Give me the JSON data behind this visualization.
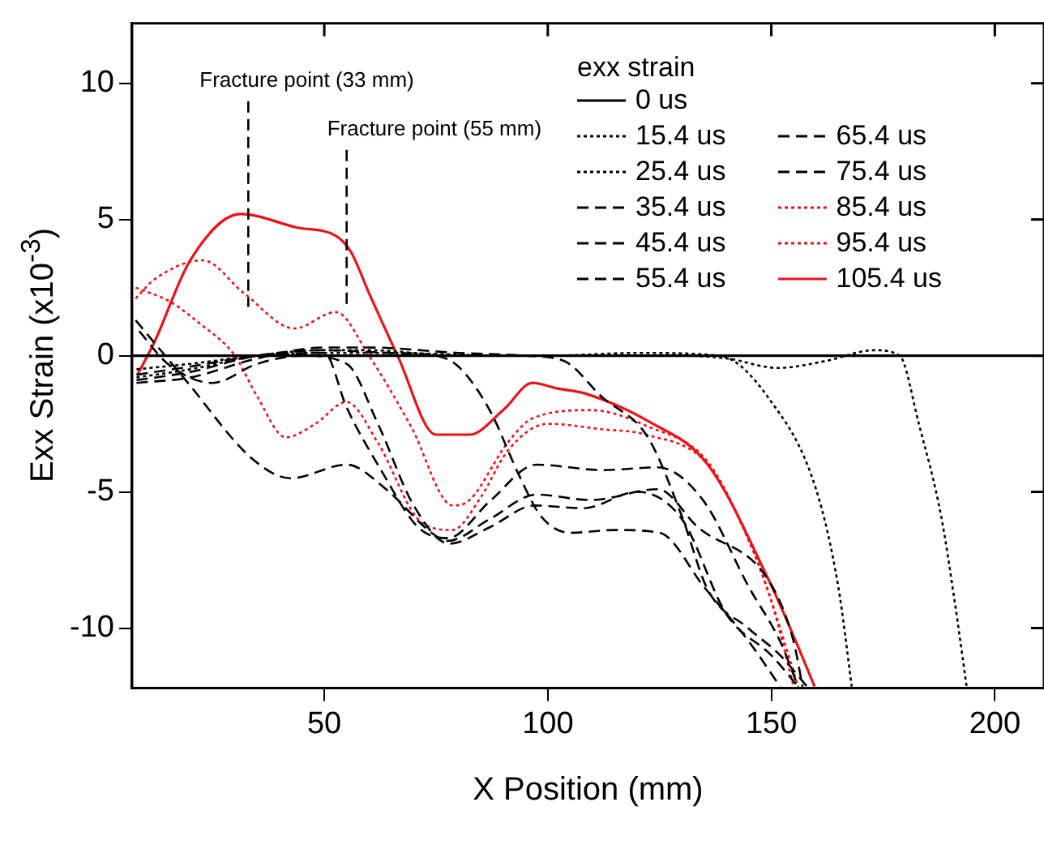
{
  "chart_data": {
    "type": "line",
    "xlabel": "X Position (mm)",
    "ylabel": "Exx Strain (x10$^{-3}$)",
    "legend_title": "exx strain",
    "legend": "top right",
    "grid": false,
    "marker": "none",
    "xlim": [
      7,
      211
    ],
    "xticks": [
      50,
      100,
      150,
      200
    ],
    "ylim": [
      -12.2,
      12.2
    ],
    "yticks": [
      -10,
      -5,
      0,
      5,
      10
    ],
    "ref_lines": [
      {
        "axis": "x",
        "value": 33,
        "label": "Fracture point (33 mm)",
        "line_style": "dashed",
        "color": "#000000"
      },
      {
        "axis": "x",
        "value": 55,
        "label": "Fracture point (55 mm)",
        "line_style": "dashed",
        "color": "#000000"
      }
    ],
    "series": [
      {
        "name": "0 us",
        "color": "#000000",
        "line_style": "solid",
        "x": [
          7,
          211
        ],
        "values": [
          0,
          0
        ]
      },
      {
        "name": "15.4 us",
        "color": "#000000",
        "line_style": "dotted",
        "x": [
          8,
          20,
          35,
          50,
          65,
          90,
          110,
          130,
          140,
          151.5,
          162,
          173,
          178.7,
          183,
          188,
          191,
          193.7
        ],
        "values": [
          -0.5,
          -0.3,
          0,
          0.1,
          0.1,
          0,
          0,
          0,
          -0.1,
          -0.45,
          -0.2,
          0.2,
          0,
          -2.5,
          -5.9,
          -9,
          -12.15
        ]
      },
      {
        "name": "25.4 us",
        "color": "#000000",
        "line_style": "dotted",
        "x": [
          8,
          20,
          35,
          50,
          60,
          80,
          100,
          120,
          138.4,
          149.6,
          160,
          165,
          168
        ],
        "values": [
          -0.8,
          -0.5,
          0,
          0.2,
          0.2,
          0,
          0,
          0.1,
          0,
          -1.6,
          -4.9,
          -8.5,
          -12.15
        ]
      },
      {
        "name": "35.4 us",
        "color": "#000000",
        "line_style": "dashed",
        "x": [
          8,
          20,
          35,
          50,
          60,
          80,
          95,
          103.7,
          112,
          122.4,
          130,
          135.8,
          144.8,
          152,
          158
        ],
        "values": [
          -1,
          -0.8,
          -0.1,
          0.3,
          0.3,
          0.1,
          0,
          -0.2,
          -1.5,
          -3,
          -5.9,
          -8.6,
          -10,
          -11,
          -12.15
        ]
      },
      {
        "name": "45.4 us",
        "color": "#000000",
        "line_style": "dashed",
        "x": [
          8,
          20,
          35,
          50,
          65,
          75,
          80,
          87,
          93.6,
          98.5,
          105,
          115,
          125,
          135,
          145,
          152
        ],
        "values": [
          -0.9,
          -0.6,
          0,
          0.2,
          0.1,
          0,
          -0.4,
          -2,
          -4.4,
          -5.9,
          -6.5,
          -6.4,
          -6.5,
          -8.5,
          -10.5,
          -12.15
        ]
      },
      {
        "name": "55.4 us",
        "color": "#000000",
        "line_style": "dashed",
        "x": [
          8,
          20,
          35,
          50,
          55,
          62.7,
          71,
          77.6,
          87.3,
          97.4,
          112.3,
          124.6,
          134.7,
          145,
          152,
          156
        ],
        "values": [
          -0.7,
          -0.4,
          0,
          0.1,
          -1.9,
          -4.2,
          -6.3,
          -6.7,
          -5.3,
          -4,
          -4.2,
          -4.1,
          -5.3,
          -8.5,
          -10.5,
          -12.15
        ]
      },
      {
        "name": "65.4 us",
        "color": "#000000",
        "line_style": "dashed",
        "x": [
          7.8,
          19,
          34,
          42.5,
          55,
          63.8,
          74,
          77.6,
          87,
          97.4,
          109.7,
          124.6,
          133.6,
          149.6,
          155,
          157
        ],
        "values": [
          1.3,
          -0.9,
          -3.8,
          -4.5,
          -4,
          -4.9,
          -6.5,
          -6.8,
          -6,
          -5.1,
          -5.3,
          -4.9,
          -6.3,
          -8.3,
          -10.5,
          -12.15
        ]
      },
      {
        "name": "75.4 us",
        "color": "#000000",
        "line_style": "dashed",
        "x": [
          8.6,
          15,
          25,
          35,
          45,
          55,
          62,
          70,
          78,
          87,
          97,
          108,
          120,
          130,
          140,
          150,
          156
        ],
        "values": [
          0.9,
          -0.3,
          -1,
          -0.3,
          0,
          -0.3,
          -2.5,
          -5.5,
          -6.9,
          -6.3,
          -5.5,
          -5.6,
          -5,
          -6,
          -9.5,
          -11,
          -12.15
        ]
      },
      {
        "name": "85.4 us",
        "color": "#e8141a",
        "line_style": "dotted",
        "x": [
          7.8,
          15.3,
          22,
          30,
          35,
          41.4,
          48,
          55,
          62,
          71.6,
          78.7,
          85,
          91,
          100,
          112,
          122,
          135.8,
          145,
          150,
          155
        ],
        "values": [
          2.5,
          2,
          1.2,
          0,
          -1.5,
          -3,
          -2.5,
          -1.7,
          -3.2,
          -6.1,
          -6.4,
          -5.2,
          -3.5,
          -2.5,
          -2.7,
          -2.9,
          -4,
          -6.8,
          -9,
          -12.15
        ]
      },
      {
        "name": "95.4 us",
        "color": "#e8141a",
        "line_style": "dotted",
        "x": [
          7.8,
          12,
          22.8,
          32,
          43.3,
          52.6,
          60,
          69.4,
          78.7,
          82.5,
          91,
          96.6,
          109.7,
          122.4,
          135.8,
          145,
          150,
          156
        ],
        "values": [
          2.1,
          2.8,
          3.5,
          2.3,
          1,
          1.6,
          0,
          -2.6,
          -5.5,
          -5.3,
          -3.2,
          -2.3,
          -2,
          -2.6,
          -3.9,
          -6.8,
          -9,
          -12.15
        ]
      },
      {
        "name": "105.4 us",
        "color": "#e8141a",
        "line_style": "solid",
        "x": [
          8.2,
          12,
          20,
          31.3,
          44,
          52.6,
          56,
          60,
          66.4,
          75,
          82.5,
          90,
          96.6,
          102,
          108.6,
          122.4,
          135.8,
          149.6,
          155,
          159.7
        ],
        "values": [
          -0.7,
          0.5,
          3.5,
          5.2,
          4.7,
          4.4,
          3.8,
          2.3,
          0,
          -2.9,
          -2.9,
          -2,
          -1,
          -1.2,
          -1.4,
          -2.4,
          -4,
          -8.3,
          -10.3,
          -12.15
        ]
      }
    ]
  }
}
